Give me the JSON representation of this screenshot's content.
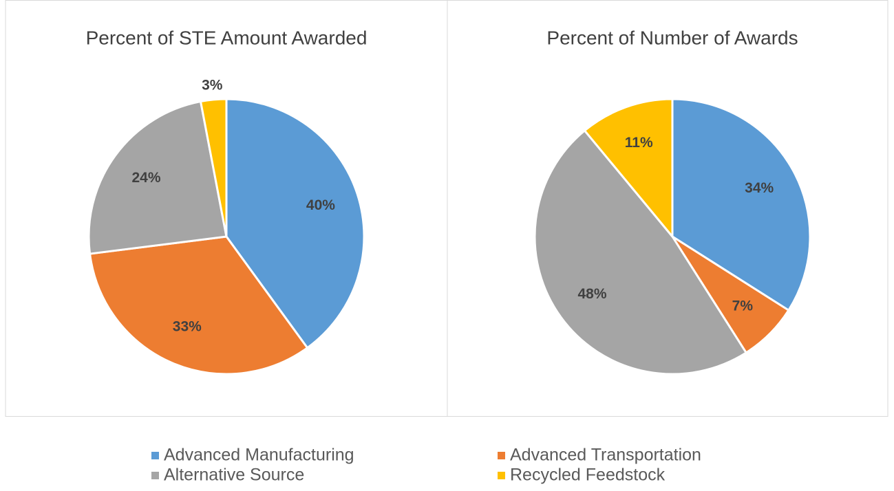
{
  "chart_data": [
    {
      "type": "pie",
      "title": "Percent of STE Amount Awarded",
      "values": [
        40,
        33,
        24,
        3
      ],
      "value_labels": [
        "40%",
        "33%",
        "24%",
        "3%"
      ]
    },
    {
      "type": "pie",
      "title": "Percent of Number of Awards",
      "values": [
        34,
        7,
        48,
        11
      ],
      "value_labels": [
        "34%",
        "7%",
        "48%",
        "11%"
      ]
    }
  ],
  "legend": {
    "categories": [
      "Advanced Manufacturing",
      "Advanced Transportation",
      "Alternative Source",
      "Recycled Feedstock"
    ],
    "colors": [
      "#5b9bd5",
      "#ed7d31",
      "#a5a5a5",
      "#ffc000"
    ]
  }
}
